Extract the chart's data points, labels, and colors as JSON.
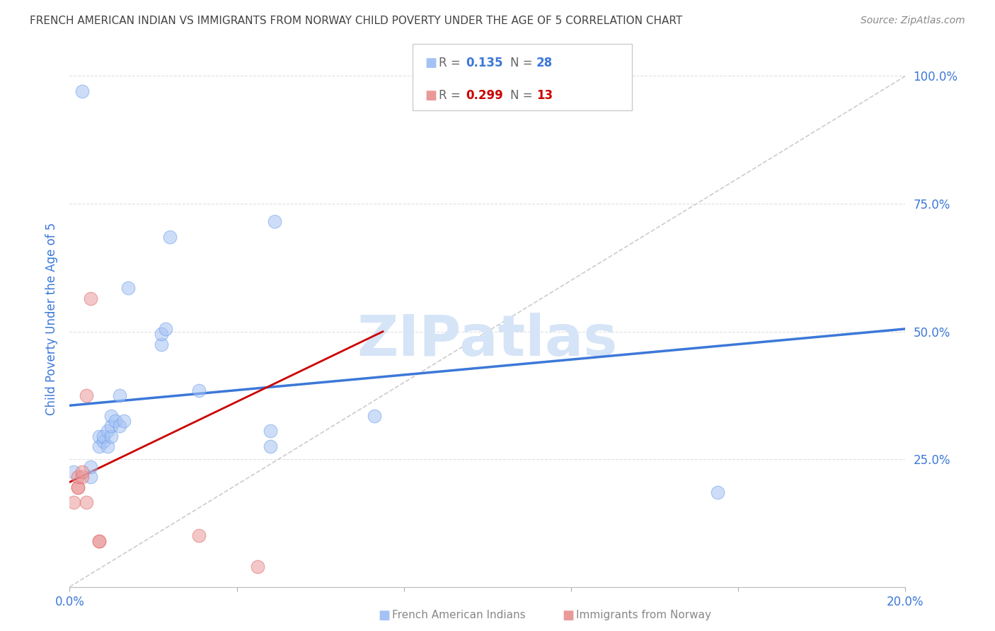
{
  "title": "FRENCH AMERICAN INDIAN VS IMMIGRANTS FROM NORWAY CHILD POVERTY UNDER THE AGE OF 5 CORRELATION CHART",
  "source": "Source: ZipAtlas.com",
  "ylabel": "Child Poverty Under the Age of 5",
  "xlim": [
    0.0,
    0.2
  ],
  "ylim": [
    0.0,
    1.05
  ],
  "yticks": [
    0.0,
    0.25,
    0.5,
    0.75,
    1.0
  ],
  "ytick_labels": [
    "",
    "25.0%",
    "50.0%",
    "75.0%",
    "100.0%"
  ],
  "xticks": [
    0.0,
    0.04,
    0.08,
    0.12,
    0.16,
    0.2
  ],
  "xtick_labels": [
    "0.0%",
    "",
    "",
    "",
    "",
    "20.0%"
  ],
  "blue_color": "#a4c2f4",
  "pink_color": "#ea9999",
  "blue_scatter_edge": "#6d9eeb",
  "pink_scatter_edge": "#e06666",
  "blue_line_color": "#3c78d8",
  "pink_line_color": "#cc0000",
  "diag_line_color": "#cccccc",
  "grid_color": "#e0e0e0",
  "legend_label1": "French American Indians",
  "legend_label2": "Immigrants from Norway",
  "title_color": "#444444",
  "tick_color": "#3c78d8",
  "ylabel_color": "#3c78d8",
  "watermark_color": "#d6e4f7",
  "blue_points_x": [
    0.001,
    0.005,
    0.005,
    0.007,
    0.007,
    0.008,
    0.008,
    0.009,
    0.009,
    0.01,
    0.01,
    0.01,
    0.011,
    0.012,
    0.012,
    0.013,
    0.014,
    0.022,
    0.022,
    0.023,
    0.024,
    0.048,
    0.048,
    0.049,
    0.073,
    0.155,
    0.031,
    0.003
  ],
  "blue_points_y": [
    0.225,
    0.215,
    0.235,
    0.275,
    0.295,
    0.285,
    0.295,
    0.305,
    0.275,
    0.295,
    0.315,
    0.335,
    0.325,
    0.315,
    0.375,
    0.325,
    0.585,
    0.475,
    0.495,
    0.505,
    0.685,
    0.305,
    0.275,
    0.715,
    0.335,
    0.185,
    0.385,
    0.97
  ],
  "pink_points_x": [
    0.001,
    0.002,
    0.002,
    0.002,
    0.003,
    0.003,
    0.004,
    0.004,
    0.005,
    0.007,
    0.007,
    0.031,
    0.045
  ],
  "pink_points_y": [
    0.165,
    0.195,
    0.195,
    0.215,
    0.215,
    0.225,
    0.375,
    0.165,
    0.565,
    0.09,
    0.09,
    0.1,
    0.04
  ],
  "blue_trend_x": [
    0.0,
    0.2
  ],
  "blue_trend_y": [
    0.355,
    0.505
  ],
  "pink_trend_x": [
    0.0,
    0.075
  ],
  "pink_trend_y": [
    0.205,
    0.5
  ]
}
